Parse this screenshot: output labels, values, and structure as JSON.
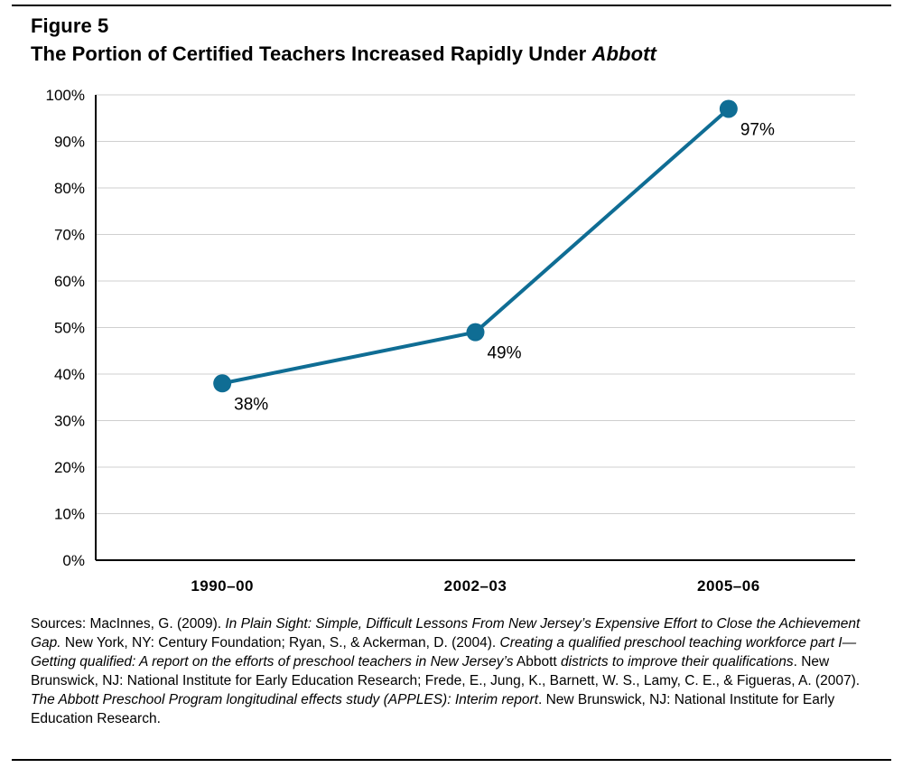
{
  "header": {
    "figure_label": "Figure 5",
    "title_main": "The Portion of Certified Teachers Increased Rapidly Under ",
    "title_italic": "Abbott"
  },
  "chart_data": {
    "type": "line",
    "categories": [
      "1990–00",
      "2002–03",
      "2005–06"
    ],
    "series": [
      {
        "values": [
          38,
          49,
          97
        ]
      }
    ],
    "data_labels": [
      "38%",
      "49%",
      "97%"
    ],
    "y_ticks": [
      0,
      10,
      20,
      30,
      40,
      50,
      60,
      70,
      80,
      90,
      100
    ],
    "y_tick_labels": [
      "0%",
      "10%",
      "20%",
      "30%",
      "40%",
      "50%",
      "60%",
      "70%",
      "80%",
      "90%",
      "100%"
    ],
    "ylim": [
      0,
      100
    ],
    "grid": true,
    "line_color": "#0f6d94",
    "grid_color": "#cfcfcf"
  },
  "sources": {
    "segments": [
      {
        "text": "Sources: MacInnes, G. (2009). ",
        "italic": false
      },
      {
        "text": "In Plain Sight: Simple, Difficult Lessons From New Jersey’s Expensive Effort to Close the Achievement Gap.",
        "italic": true
      },
      {
        "text": " New York, NY: Century Foundation; Ryan, S., & Ackerman, D. (2004). ",
        "italic": false
      },
      {
        "text": "Creating a qualified preschool teaching workforce part I—Getting qualified: A report on the efforts of preschool teachers in New Jersey’s",
        "italic": true
      },
      {
        "text": " Abbott ",
        "italic": false
      },
      {
        "text": "districts to improve their qualifications",
        "italic": true
      },
      {
        "text": ". New Brunswick, NJ: National Institute for Early Education Research; Frede, E., Jung, K., Barnett, W. S., Lamy, C. E., & Figueras, A. (2007). ",
        "italic": false
      },
      {
        "text": "The Abbott Preschool Program longitudinal effects study (APPLES): Interim report",
        "italic": true
      },
      {
        "text": ". New Brunswick, NJ: National Institute for Early Education Research.",
        "italic": false
      }
    ]
  }
}
